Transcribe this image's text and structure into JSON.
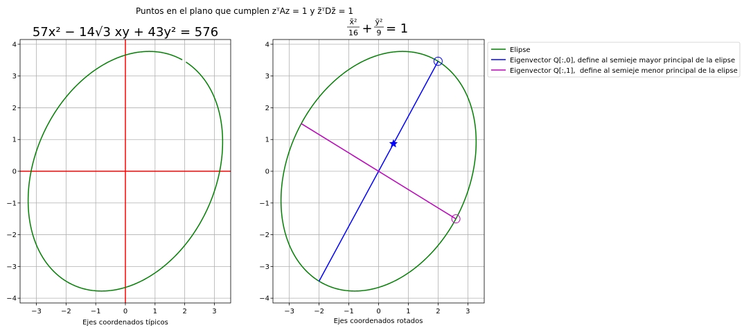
{
  "suptitle": "Puntos en el plano que cumplen zᵀAz = 1 y z̃ᵀDz̃ = 1",
  "chart_data": [
    {
      "type": "line",
      "title": "57x² − 14√3 xy + 43y² = 576",
      "xlabel": "Ejes coordenados típicos",
      "ylabel": "",
      "xlim": [
        -3.55,
        3.55
      ],
      "ylim": [
        -4.15,
        4.15
      ],
      "xticks": [
        -3,
        -2,
        -1,
        0,
        1,
        2,
        3
      ],
      "yticks": [
        -4,
        -3,
        -2,
        -1,
        0,
        1,
        2,
        3,
        4
      ],
      "xtick_labels": [
        "−3",
        "−2",
        "−1",
        "0",
        "1",
        "2",
        "3"
      ],
      "ytick_labels": [
        "−4",
        "−3",
        "−2",
        "−1",
        "0",
        "1",
        "2",
        "3",
        "4"
      ],
      "grid": true,
      "ellipse": {
        "semi_major": 4,
        "semi_minor": 3,
        "angle_deg": 60,
        "color": "#008000",
        "gap_x_range": [
          1.92,
          2.02
        ]
      },
      "axes_lines": {
        "color": "#ff0000"
      }
    },
    {
      "type": "line",
      "title": "x̃²/16 + ỹ²/9 = 1",
      "title_parts": {
        "num1": "x̃²",
        "den1": "16",
        "num2": "ỹ²",
        "den2": "9",
        "rhs": "+",
        "eq": "= 1"
      },
      "xlabel": "Ejes coordenados rotados",
      "ylabel": "",
      "xlim": [
        -3.55,
        3.55
      ],
      "ylim": [
        -4.15,
        4.15
      ],
      "xticks": [
        -3,
        -2,
        -1,
        0,
        1,
        2,
        3
      ],
      "yticks": [
        -4,
        -3,
        -2,
        -1,
        0,
        1,
        2,
        3,
        4
      ],
      "xtick_labels": [
        "−3",
        "−2",
        "−1",
        "0",
        "1",
        "2",
        "3"
      ],
      "ytick_labels": [
        "−4",
        "−3",
        "−2",
        "−1",
        "0",
        "1",
        "2",
        "3",
        "4"
      ],
      "grid": true,
      "series": [
        {
          "name": "Elipse",
          "color": "#008000",
          "kind": "ellipse",
          "semi_major": 4,
          "semi_minor": 3,
          "angle_deg": 60
        },
        {
          "name": "Eigenvector Q[:,0], define al semieje mayor principal de la elipse",
          "color": "#0000ff",
          "x": [
            -2,
            2
          ],
          "y": [
            -3.464,
            3.464
          ],
          "circle_point": [
            2,
            3.464
          ],
          "star_point": [
            0.5,
            0.866
          ]
        },
        {
          "name": "Eigenvector Q[:,1],  define al semieje menor principal de la elipse",
          "color": "#bf00bf",
          "x": [
            -2.598,
            2.598
          ],
          "y": [
            1.5,
            -1.5
          ],
          "circle_point": [
            2.598,
            -1.5
          ]
        }
      ],
      "legend_placement": "outside upper right"
    }
  ]
}
